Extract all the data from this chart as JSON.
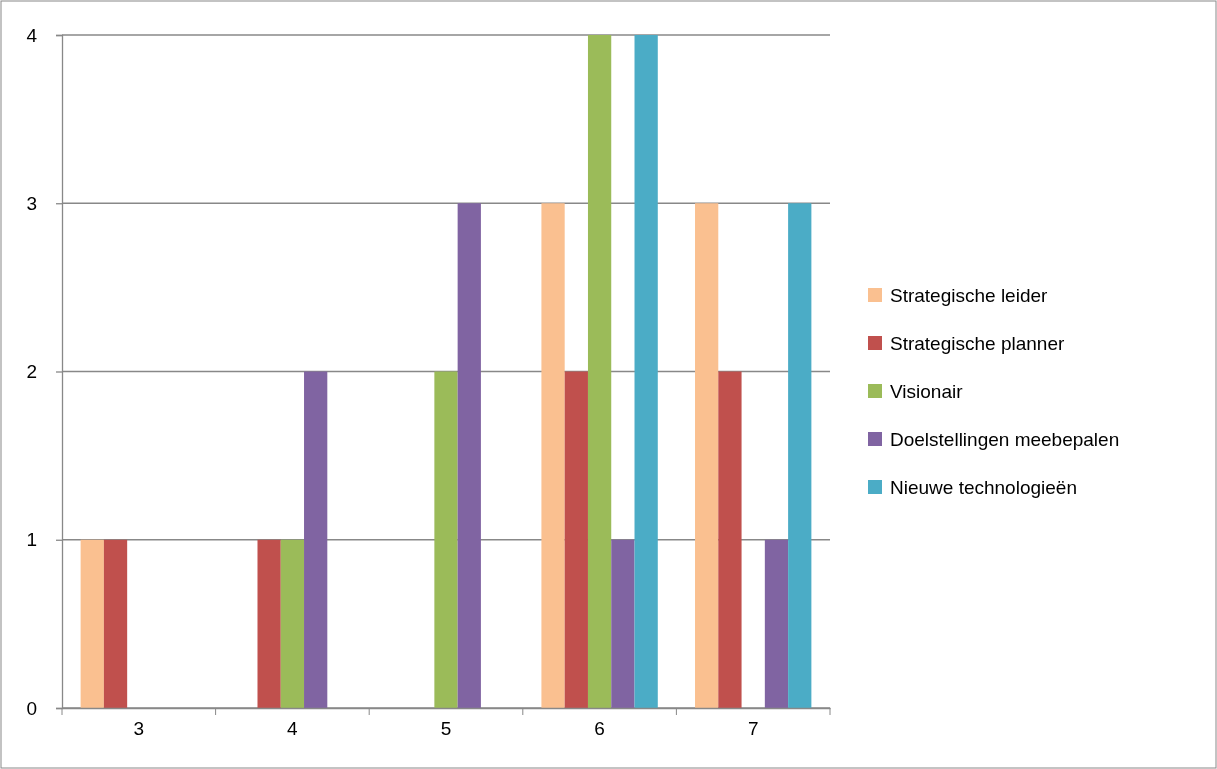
{
  "chart_data": {
    "type": "bar",
    "categories": [
      "3",
      "4",
      "5",
      "6",
      "7"
    ],
    "series": [
      {
        "name": "Strategische leider",
        "color": "#fac090",
        "values": [
          1,
          0,
          0,
          3,
          3
        ]
      },
      {
        "name": "Strategische planner",
        "color": "#c0504d",
        "values": [
          1,
          1,
          0,
          2,
          2
        ]
      },
      {
        "name": "Visionair",
        "color": "#9bbb59",
        "values": [
          0,
          1,
          2,
          4,
          0
        ]
      },
      {
        "name": "Doelstellingen meebepalen",
        "color": "#8064a2",
        "values": [
          0,
          2,
          3,
          1,
          1
        ]
      },
      {
        "name": "Nieuwe technologieën",
        "color": "#4bacc6",
        "values": [
          0,
          0,
          0,
          4,
          3
        ]
      }
    ],
    "ylim": [
      0,
      4
    ],
    "yticks": [
      0,
      1,
      2,
      3,
      4
    ],
    "grid": "y",
    "legend": "right"
  }
}
